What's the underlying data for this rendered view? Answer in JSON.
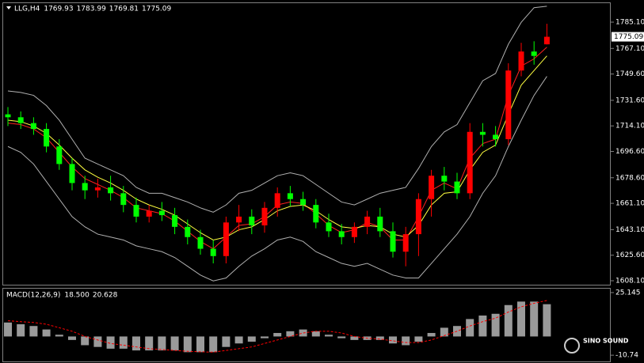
{
  "chart_data": [
    {
      "type": "candlestick",
      "title": "LLG,H4",
      "open": [
        1722,
        1720,
        1716,
        1712,
        1700,
        1688,
        1675,
        1670,
        1672,
        1668,
        1660,
        1652,
        1656,
        1653,
        1645,
        1638,
        1630,
        1625,
        1648,
        1652,
        1646,
        1658,
        1668,
        1664,
        1660,
        1648,
        1642,
        1638,
        1645,
        1652,
        1642,
        1628,
        1640,
        1664,
        1680,
        1676,
        1668,
        1710,
        1708,
        1705,
        1752,
        1765,
        1769.93
      ],
      "high": [
        1727,
        1724,
        1720,
        1716,
        1705,
        1692,
        1680,
        1678,
        1680,
        1673,
        1665,
        1660,
        1662,
        1658,
        1650,
        1643,
        1636,
        1652,
        1660,
        1657,
        1662,
        1672,
        1673,
        1669,
        1664,
        1654,
        1647,
        1648,
        1656,
        1658,
        1648,
        1645,
        1668,
        1684,
        1686,
        1682,
        1716,
        1716,
        1714,
        1757,
        1771,
        1772,
        1783.99
      ],
      "low": [
        1714,
        1712,
        1708,
        1696,
        1684,
        1670,
        1664,
        1665,
        1663,
        1655,
        1648,
        1648,
        1649,
        1640,
        1633,
        1626,
        1620,
        1620,
        1642,
        1640,
        1641,
        1652,
        1659,
        1656,
        1644,
        1638,
        1633,
        1634,
        1640,
        1638,
        1624,
        1618,
        1625,
        1652,
        1670,
        1664,
        1664,
        1700,
        1700,
        1701,
        1748,
        1756,
        1769.81
      ],
      "close": [
        1720,
        1716,
        1712,
        1700,
        1688,
        1675,
        1670,
        1672,
        1668,
        1660,
        1652,
        1656,
        1653,
        1645,
        1638,
        1630,
        1625,
        1648,
        1652,
        1646,
        1658,
        1668,
        1664,
        1660,
        1648,
        1642,
        1638,
        1645,
        1652,
        1642,
        1628,
        1640,
        1664,
        1680,
        1676,
        1668,
        1710,
        1708,
        1705,
        1752,
        1765,
        1762,
        1775.09
      ],
      "lines": [
        {
          "color": "#b0b0b0",
          "values": [
            1738,
            1737,
            1735,
            1728,
            1718,
            1705,
            1692,
            1688,
            1684,
            1680,
            1672,
            1668,
            1668,
            1665,
            1662,
            1658,
            1655,
            1660,
            1668,
            1670,
            1675,
            1680,
            1682,
            1680,
            1674,
            1668,
            1662,
            1660,
            1664,
            1668,
            1670,
            1672,
            1685,
            1700,
            1710,
            1715,
            1730,
            1745,
            1750,
            1770,
            1785,
            1795,
            1796
          ]
        },
        {
          "color": "#b0b0b0",
          "values": [
            1700,
            1696,
            1688,
            1676,
            1664,
            1652,
            1645,
            1640,
            1638,
            1636,
            1632,
            1630,
            1628,
            1624,
            1618,
            1612,
            1608,
            1610,
            1618,
            1625,
            1630,
            1636,
            1638,
            1635,
            1628,
            1624,
            1620,
            1618,
            1620,
            1616,
            1612,
            1610,
            1610,
            1620,
            1630,
            1640,
            1652,
            1668,
            1680,
            1700,
            1718,
            1735,
            1748
          ]
        },
        {
          "color": "#ff2020",
          "values": [
            1716,
            1715,
            1712,
            1706,
            1696,
            1686,
            1678,
            1674,
            1670,
            1665,
            1658,
            1656,
            1654,
            1649,
            1642,
            1635,
            1630,
            1638,
            1646,
            1647,
            1652,
            1660,
            1662,
            1661,
            1654,
            1646,
            1641,
            1643,
            1648,
            1645,
            1636,
            1636,
            1652,
            1670,
            1675,
            1671,
            1692,
            1702,
            1705,
            1735,
            1755,
            1760,
            1768
          ]
        },
        {
          "color": "#ffff40",
          "values": [
            1718,
            1717,
            1714,
            1709,
            1701,
            1692,
            1684,
            1679,
            1675,
            1670,
            1664,
            1660,
            1657,
            1653,
            1647,
            1641,
            1636,
            1638,
            1643,
            1645,
            1650,
            1656,
            1659,
            1660,
            1656,
            1650,
            1645,
            1644,
            1646,
            1645,
            1640,
            1638,
            1646,
            1660,
            1668,
            1669,
            1684,
            1696,
            1701,
            1722,
            1742,
            1752,
            1762
          ]
        }
      ],
      "up_color": "#ff0000",
      "down_color": "#00ff00",
      "ylim": [
        1605.4,
        1798.1
      ],
      "yticks": [
        {
          "value": 1785.1,
          "label": "1785.10"
        },
        {
          "value": 1767.1,
          "label": "1767.10"
        },
        {
          "value": 1749.6,
          "label": "1749.60"
        },
        {
          "value": 1731.6,
          "label": "1731.60"
        },
        {
          "value": 1714.1,
          "label": "1714.10"
        },
        {
          "value": 1696.6,
          "label": "1696.60"
        },
        {
          "value": 1678.6,
          "label": "1678.60"
        },
        {
          "value": 1661.1,
          "label": "1661.10"
        },
        {
          "value": 1643.1,
          "label": "1643.10"
        },
        {
          "value": 1625.6,
          "label": "1625.60"
        },
        {
          "value": 1608.1,
          "label": "1608.10"
        }
      ]
    },
    {
      "type": "macd",
      "title": "MACD(12,26,9)",
      "legend_values": [
        {
          "value": 18.5,
          "label": "18.500"
        },
        {
          "value": 20.628,
          "label": "20.628"
        }
      ],
      "values": [
        8,
        7,
        6,
        4,
        1,
        -2,
        -5,
        -6,
        -7,
        -7,
        -8,
        -8,
        -8,
        -8,
        -9,
        -9,
        -9,
        -6,
        -4,
        -3,
        -1,
        2,
        3,
        4,
        3,
        1,
        -1,
        -2,
        -2,
        -2,
        -4,
        -5,
        -3,
        2,
        5,
        6,
        10,
        12,
        13,
        18,
        20,
        20,
        18.5
      ],
      "signal": [
        9,
        8.5,
        8,
        7,
        5,
        3,
        0,
        -2,
        -4,
        -5,
        -6,
        -7,
        -7.5,
        -8,
        -8.5,
        -8.8,
        -9,
        -8,
        -7,
        -6,
        -4,
        -2,
        0,
        2,
        3,
        3,
        2,
        0,
        -1,
        -1.5,
        -2.5,
        -3.5,
        -3.5,
        -2,
        0.5,
        3,
        6,
        8.5,
        10.5,
        14,
        17,
        19,
        20.628
      ],
      "color": "#c0c0c0",
      "signal_color": "#ff0000",
      "ylim": [
        -14.3,
        27.4
      ],
      "yticks": [
        25.145,
        -10.74
      ]
    }
  ],
  "watermark": "SINO SOUND"
}
